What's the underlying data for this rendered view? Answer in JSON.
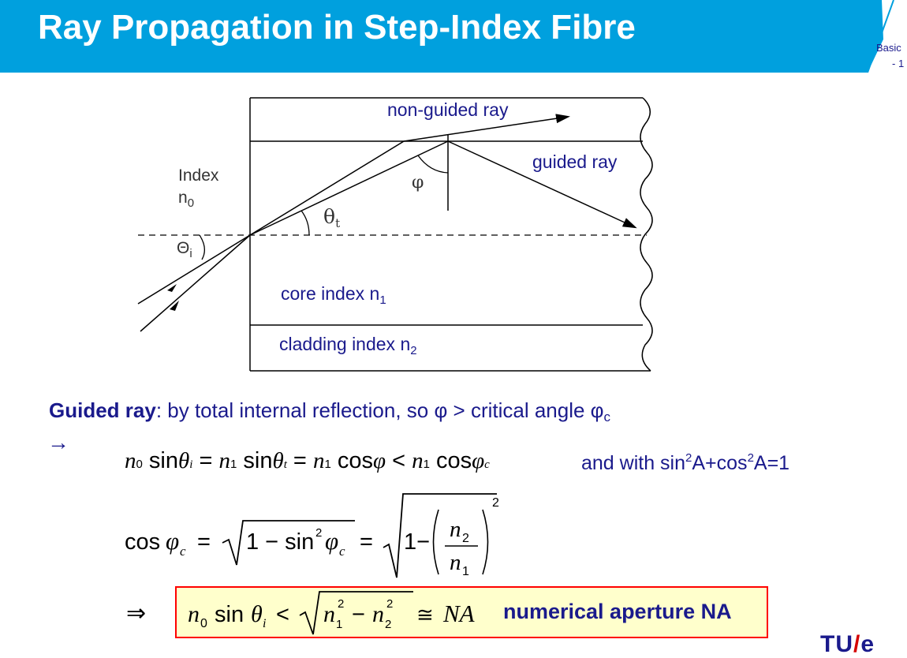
{
  "header": {
    "title": "Ray Propagation in Step-Index Fibre",
    "corner_line1": "Basic",
    "corner_line2": "- 1",
    "banner_color": "#00a0de"
  },
  "diagram": {
    "non_guided_label": "non-guided ray",
    "guided_label": "guided ray",
    "index_label_line1": "Index",
    "index_label_n": "n",
    "index_label_sub": "0",
    "phi_label": "φ",
    "theta_t_label": "θ",
    "theta_t_sub": "t",
    "theta_i_label": "Θ",
    "theta_i_sub": "i",
    "core_label": "core index n",
    "core_sub": "1",
    "cladding_label": "cladding index n",
    "cladding_sub": "2"
  },
  "text": {
    "guided_bold": "Guided ray",
    "guided_rest": ": by total internal reflection, so φ > critical angle φ",
    "guided_sub": "c",
    "arrow": "→"
  },
  "equations": {
    "note_part1": "and with sin",
    "note_sup1": "2",
    "note_part2": "A+cos",
    "note_sup2": "2",
    "note_part3": "A=1",
    "implies": "⇒",
    "na_label": "numerical aperture NA"
  },
  "logo": {
    "text_left": "TU",
    "text_slash": "/",
    "text_right": "e"
  }
}
